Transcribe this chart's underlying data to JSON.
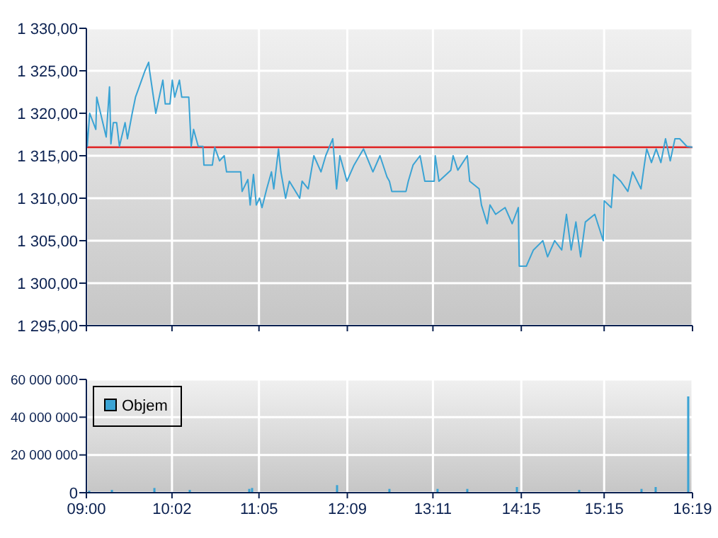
{
  "chart_data": [
    {
      "type": "line",
      "xlim": [
        9,
        16.3167
      ],
      "xticks": [
        {
          "value": 9,
          "label": null
        },
        {
          "value": 10.0333,
          "label": null
        },
        {
          "value": 11.0833,
          "label": null
        },
        {
          "value": 12.15,
          "label": null
        },
        {
          "value": 13.1833,
          "label": null
        },
        {
          "value": 14.25,
          "label": null
        },
        {
          "value": 15.25,
          "label": null
        },
        {
          "value": 16.3167,
          "label": null
        }
      ],
      "ylim": [
        1295,
        1330
      ],
      "yticks": [
        {
          "value": 1295,
          "label": "1 295,00"
        },
        {
          "value": 1300,
          "label": "1 300,00"
        },
        {
          "value": 1305,
          "label": "1 305,00"
        },
        {
          "value": 1310,
          "label": "1 310,00"
        },
        {
          "value": 1315,
          "label": "1 315,00"
        },
        {
          "value": 1320,
          "label": "1 320,00"
        },
        {
          "value": 1325,
          "label": "1 325,00"
        },
        {
          "value": 1330,
          "label": "1 330,00"
        }
      ],
      "tick_labels": "y",
      "grid": true,
      "ref_lines": [
        {
          "axis": "y",
          "value": 1316,
          "label": null,
          "color": "#e02020"
        }
      ],
      "series": [
        {
          "color": "#3aa3d4",
          "x": [
            9.0,
            9.011,
            9.04,
            9.114,
            9.125,
            9.239,
            9.279,
            9.296,
            9.325,
            9.365,
            9.399,
            9.467,
            9.496,
            9.553,
            9.593,
            9.667,
            9.707,
            9.752,
            9.763,
            9.838,
            9.923,
            9.952,
            10.009,
            10.037,
            10.066,
            10.123,
            10.151,
            10.236,
            10.265,
            10.294,
            10.35,
            10.407,
            10.419,
            10.521,
            10.55,
            10.607,
            10.664,
            10.692,
            10.863,
            10.88,
            10.949,
            10.977,
            11.017,
            11.051,
            11.091,
            11.12,
            11.177,
            11.234,
            11.262,
            11.319,
            11.348,
            11.405,
            11.45,
            11.575,
            11.604,
            11.678,
            11.746,
            11.832,
            11.889,
            11.974,
            12.02,
            12.06,
            12.145,
            12.231,
            12.345,
            12.459,
            12.544,
            12.629,
            12.658,
            12.687,
            12.858,
            12.886,
            12.943,
            13.028,
            13.085,
            13.199,
            13.211,
            13.256,
            13.399,
            13.427,
            13.484,
            13.598,
            13.627,
            13.741,
            13.769,
            13.838,
            13.872,
            13.94,
            14.054,
            14.14,
            14.214,
            14.225,
            14.311,
            14.396,
            14.51,
            14.567,
            14.653,
            14.738,
            14.795,
            14.852,
            14.909,
            14.966,
            15.023,
            15.137,
            15.239,
            15.251,
            15.336,
            15.365,
            15.45,
            15.536,
            15.593,
            15.695,
            15.735,
            15.764,
            15.821,
            15.878,
            15.935,
            15.991,
            16.048,
            16.105,
            16.162,
            16.248,
            16.316
          ],
          "values": [
            1318.9,
            1316.1,
            1320.0,
            1318.1,
            1321.9,
            1317.2,
            1323.1,
            1316.4,
            1318.9,
            1318.9,
            1316.1,
            1318.9,
            1317.0,
            1320.0,
            1321.9,
            1323.9,
            1325.0,
            1326.0,
            1325.0,
            1320.0,
            1323.9,
            1321.1,
            1321.1,
            1323.9,
            1321.9,
            1323.9,
            1321.9,
            1321.9,
            1316.1,
            1318.1,
            1316.1,
            1316.1,
            1313.9,
            1313.9,
            1316.0,
            1314.4,
            1315.0,
            1313.1,
            1313.1,
            1310.8,
            1312.2,
            1309.2,
            1312.8,
            1309.2,
            1310.0,
            1308.9,
            1311.1,
            1313.1,
            1311.1,
            1315.8,
            1313.1,
            1310.0,
            1312.0,
            1310.0,
            1312.0,
            1311.1,
            1315.0,
            1313.1,
            1315.0,
            1317.0,
            1311.1,
            1315.0,
            1312.0,
            1313.9,
            1315.8,
            1313.1,
            1315.0,
            1312.5,
            1312.0,
            1310.8,
            1310.8,
            1312.0,
            1313.9,
            1315.0,
            1312.0,
            1312.0,
            1315.0,
            1312.0,
            1313.3,
            1315.0,
            1313.3,
            1315.0,
            1312.0,
            1311.1,
            1309.2,
            1307.0,
            1309.2,
            1308.1,
            1308.9,
            1307.0,
            1308.9,
            1302.0,
            1302.0,
            1303.9,
            1305.0,
            1303.1,
            1305.0,
            1303.9,
            1308.1,
            1303.9,
            1307.2,
            1303.1,
            1307.2,
            1308.1,
            1305.0,
            1309.7,
            1308.9,
            1312.8,
            1312.0,
            1310.8,
            1313.1,
            1311.1,
            1313.9,
            1315.8,
            1314.2,
            1315.8,
            1314.2,
            1317.0,
            1314.4,
            1317.0,
            1317.0,
            1316.1,
            1316.0
          ]
        }
      ]
    },
    {
      "type": "bar",
      "xlim": [
        9,
        16.3167
      ],
      "xticks": [
        {
          "value": 9,
          "label": "09:00"
        },
        {
          "value": 10.0333,
          "label": "10:02"
        },
        {
          "value": 11.0833,
          "label": "11:05"
        },
        {
          "value": 12.15,
          "label": "12:09"
        },
        {
          "value": 13.1833,
          "label": "13:11"
        },
        {
          "value": 14.25,
          "label": "14:15"
        },
        {
          "value": 15.25,
          "label": "15:15"
        },
        {
          "value": 16.3167,
          "label": "16:19"
        }
      ],
      "ylim": [
        0,
        60000000
      ],
      "yticks": [
        0,
        {
          "value": 20000000,
          "label": "20 000 000"
        },
        {
          "value": 40000000,
          "label": "40 000 000"
        },
        {
          "value": 60000000,
          "label": "60 000 000"
        }
      ],
      "grid": true,
      "legend": "top left",
      "series": [
        {
          "name": "Objem",
          "color": "#3aa3d4",
          "x": [
            9.034,
            9.308,
            9.821,
            10.248,
            10.966,
            11.0,
            12.026,
            12.658,
            13.239,
            13.598,
            14.197,
            14.949,
            15.701,
            15.872,
            16.265
          ],
          "values": [
            1000000,
            1500000,
            2500000,
            1500000,
            2000000,
            2500000,
            4000000,
            2000000,
            2000000,
            2000000,
            3000000,
            1500000,
            2000000,
            3000000,
            51000000
          ]
        }
      ]
    }
  ]
}
